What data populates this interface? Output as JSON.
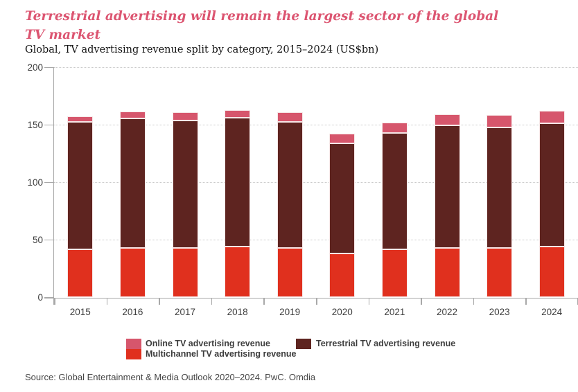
{
  "header": {
    "title_line1": "Terrestrial advertising will remain the largest sector of the global",
    "title_line2": "TV market",
    "subtitle": "Global, TV advertising revenue split by category, 2015–2024 (US$bn)"
  },
  "chart_data": {
    "type": "bar",
    "stacked": true,
    "title": "Terrestrial advertising will remain the largest sector of the global TV market",
    "subtitle": "Global, TV advertising revenue split by category, 2015–2024 (US$bn)",
    "categories": [
      "2015",
      "2016",
      "2017",
      "2018",
      "2019",
      "2020",
      "2021",
      "2022",
      "2023",
      "2024"
    ],
    "series": [
      {
        "name": "Multichannel TV advertising revenue",
        "color": "#e0301e",
        "values": [
          42,
          43,
          43,
          44,
          43,
          38,
          42,
          43,
          43,
          44
        ]
      },
      {
        "name": "Terrestrial TV advertising revenue",
        "color": "#5e2420",
        "values": [
          110.5,
          113,
          111,
          112.5,
          110,
          96,
          101,
          106.5,
          105,
          107.5
        ]
      },
      {
        "name": "Online TV advertising revenue",
        "color": "#d6566c",
        "values": [
          5,
          6,
          7,
          6.5,
          8,
          8.5,
          9,
          10,
          11,
          11
        ]
      }
    ],
    "ylim": [
      0,
      200
    ],
    "yticks": [
      0,
      50,
      100,
      150,
      200
    ],
    "xlabel": "",
    "ylabel": "",
    "grid": "horizontal-dotted",
    "legend_position": "bottom"
  },
  "legend": {
    "column1": [
      {
        "label": "Online TV advertising revenue",
        "color": "#d6566c"
      },
      {
        "label": "Multichannel TV advertising revenue",
        "color": "#e0301e"
      }
    ],
    "column2": [
      {
        "label": "Terrestrial TV advertising revenue",
        "color": "#5e2420"
      }
    ]
  },
  "source": "Source: Global Entertainment & Media Outlook 2020–2024. PwC. Omdia",
  "colors": {
    "title": "#dc5571",
    "axis": "#a8a8a8",
    "grid": "#c9c9c9",
    "text": "#3d3d3d",
    "segment_border": "#f7e8e8",
    "background": "#ffffff"
  }
}
